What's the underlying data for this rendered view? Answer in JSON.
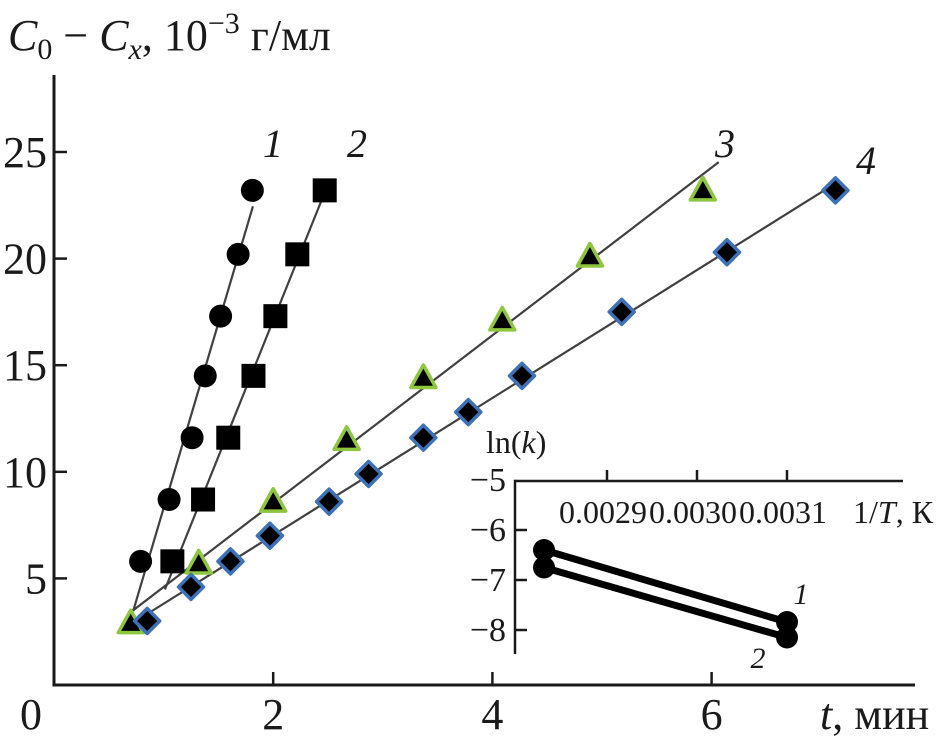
{
  "figure": {
    "background": "#ffffff",
    "text_color": "#1a1a1a",
    "axis_color": "#1a1a1a",
    "fit_line_color": "#404040",
    "marker_fill": "#000000",
    "triangle_edge_color": "#8dc63f",
    "diamond_edge_color": "#3d72b8"
  },
  "chart_data": {
    "type": "scatter",
    "title_parts": [
      {
        "t": "C",
        "i": true
      },
      {
        "t": "0",
        "sub": true
      },
      {
        "t": " − "
      },
      {
        "t": "C",
        "i": true
      },
      {
        "t": "x",
        "i": true,
        "sub": true
      },
      {
        "t": ", 10"
      },
      {
        "t": "−3",
        "sup": true
      },
      {
        "t": " г/мл"
      }
    ],
    "xlabel_parts": [
      {
        "t": "t",
        "i": true
      },
      {
        "t": ", мин"
      }
    ],
    "xlim": [
      0,
      7.86
    ],
    "ylim": [
      0,
      28.6
    ],
    "grid": false,
    "x_ticks": [
      {
        "v": 0,
        "label": "0"
      },
      {
        "v": 2,
        "label": "2"
      },
      {
        "v": 4,
        "label": "4"
      },
      {
        "v": 6,
        "label": "6"
      }
    ],
    "y_ticks": [
      {
        "v": 5,
        "label": "5"
      },
      {
        "v": 10,
        "label": "10"
      },
      {
        "v": 15,
        "label": "15"
      },
      {
        "v": 20,
        "label": "20"
      },
      {
        "v": 25,
        "label": "25"
      }
    ],
    "series": [
      {
        "name": "1",
        "marker": "circle",
        "x": [
          0.79,
          1.05,
          1.26,
          1.38,
          1.52,
          1.68,
          1.81
        ],
        "y": [
          5.8,
          8.7,
          11.6,
          14.5,
          17.3,
          20.2,
          23.2
        ]
      },
      {
        "name": "2",
        "marker": "square",
        "x": [
          1.08,
          1.36,
          1.59,
          1.82,
          2.02,
          2.22,
          2.47
        ],
        "y": [
          5.8,
          8.7,
          11.6,
          14.5,
          17.3,
          20.2,
          23.2
        ]
      },
      {
        "name": "3",
        "marker": "triangle",
        "x": [
          0.7,
          1.32,
          2.0,
          2.67,
          3.37,
          4.09,
          4.89,
          5.92
        ],
        "y": [
          2.9,
          5.7,
          8.6,
          11.5,
          14.4,
          17.1,
          20.1,
          23.2
        ]
      },
      {
        "name": "4",
        "marker": "diamond",
        "x": [
          0.85,
          1.25,
          1.61,
          1.97,
          2.51,
          2.87,
          3.37,
          3.78,
          4.27,
          5.18,
          6.14,
          7.13
        ],
        "y": [
          3.0,
          4.6,
          5.8,
          7.0,
          8.6,
          9.9,
          11.6,
          12.8,
          14.5,
          17.5,
          20.3,
          23.2
        ]
      }
    ],
    "inset": {
      "type": "line",
      "ylabel_parts": [
        {
          "t": "ln("
        },
        {
          "t": "k",
          "i": true
        },
        {
          "t": ")"
        }
      ],
      "xlabel_parts": [
        {
          "t": "1/"
        },
        {
          "t": "T",
          "i": true
        },
        {
          "t": ", К"
        }
      ],
      "x_ticks": [
        {
          "v": 0.0029,
          "label": "0.0029"
        },
        {
          "v": 0.003,
          "label": "0.0030"
        },
        {
          "v": 0.0031,
          "label": "0.0031"
        }
      ],
      "y_ticks": [
        {
          "v": -5,
          "label": "−5"
        },
        {
          "v": -6,
          "label": "−6"
        },
        {
          "v": -7,
          "label": "−7"
        },
        {
          "v": -8,
          "label": "−8"
        }
      ],
      "series": [
        {
          "name": "1",
          "x": [
            0.00283,
            0.0031
          ],
          "y": [
            -6.4,
            -7.84
          ]
        },
        {
          "name": "2",
          "x": [
            0.00283,
            0.0031
          ],
          "y": [
            -6.75,
            -8.15
          ]
        }
      ]
    }
  }
}
